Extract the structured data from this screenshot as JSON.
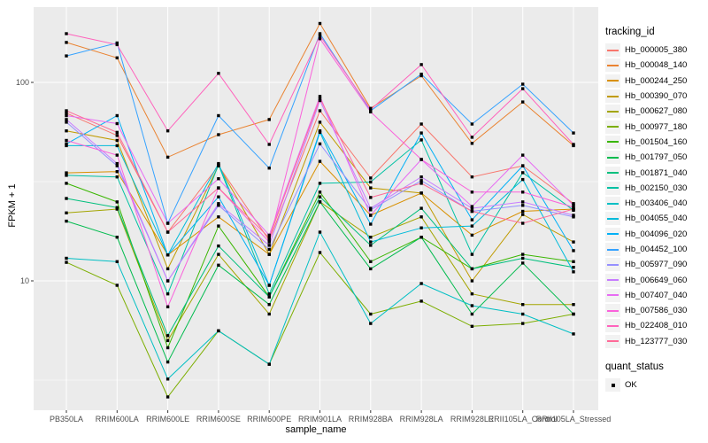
{
  "figure": {
    "background": "#FFFFFF",
    "panel_background": "#EBEBEB",
    "grid_color": "#FFFFFF",
    "axis_text_color": "#4D4D4D",
    "tick_mark_color": "#333333",
    "point_color": "#000000"
  },
  "chart_data": {
    "type": "line",
    "title": "",
    "xlabel": "sample_name",
    "ylabel": "FPKM + 1",
    "y_scale": "log10",
    "y_ticks": [
      10,
      100
    ],
    "y_tick_labels": [
      "10",
      "100"
    ],
    "y_minor_ticks": [
      3.162,
      31.62
    ],
    "ylim": [
      2.2,
      240
    ],
    "grid": "on",
    "legend_position": "right",
    "point_shape": "square",
    "categories": [
      "PB350LA",
      "RRIM600LA",
      "RRIM600LE",
      "RRIM600SE",
      "RRIM600PE",
      "RRIM901LA",
      "RRIM928BA",
      "RRIM928LA",
      "RRIM928LE",
      "RRII105LA_Control",
      "RRII105LA_Stressed"
    ],
    "series": [
      {
        "name": "Hb_000005_380",
        "color": "#F8766D",
        "values": [
          70,
          54,
          17.6,
          38,
          16,
          72,
          33,
          61.7,
          33.4,
          38,
          24.5
        ]
      },
      {
        "name": "Hb_000048_140",
        "color": "#EA8331",
        "values": [
          159,
          133,
          42,
          54.5,
          65,
          198,
          74,
          108,
          49.3,
          79.7,
          48
        ]
      },
      {
        "name": "Hb_000244_250",
        "color": "#D89000",
        "values": [
          35,
          35.5,
          13.5,
          21,
          13.6,
          40,
          21.4,
          27.7,
          17,
          22.4,
          23
        ]
      },
      {
        "name": "Hb_000390_070",
        "color": "#C09B00",
        "values": [
          57,
          51,
          11.5,
          38,
          13.6,
          63,
          29.4,
          27.7,
          10,
          21.6,
          15.7
        ]
      },
      {
        "name": "Hb_000627_080",
        "color": "#A3A500",
        "values": [
          22,
          23,
          5.0,
          13.6,
          6.8,
          25,
          16.6,
          21,
          8.6,
          7.6,
          7.6
        ]
      },
      {
        "name": "Hb_000977_180",
        "color": "#7CAE00",
        "values": [
          12.4,
          9.5,
          2.6,
          5.6,
          3.8,
          13.9,
          6.8,
          7.9,
          5.9,
          6.1,
          6.8
        ]
      },
      {
        "name": "Hb_001504_160",
        "color": "#39B600",
        "values": [
          31,
          25,
          4.6,
          18.9,
          8.3,
          28,
          12.5,
          16.6,
          11.5,
          13.6,
          12.5
        ]
      },
      {
        "name": "Hb_001797_050",
        "color": "#00BB4E",
        "values": [
          20,
          16.6,
          3.9,
          12,
          7.6,
          25,
          11.5,
          16.6,
          6.8,
          12.3,
          6.8
        ]
      },
      {
        "name": "Hb_001871_040",
        "color": "#00BF7D",
        "values": [
          26,
          23.4,
          5.3,
          15,
          8.3,
          26.5,
          15.1,
          23.2,
          11.5,
          13,
          11.7
        ]
      },
      {
        "name": "Hb_002150_030",
        "color": "#00C1A3",
        "values": [
          34,
          33.4,
          8.6,
          38.5,
          8.6,
          31,
          31.5,
          51.3,
          13.6,
          35.1,
          22.7
        ]
      },
      {
        "name": "Hb_003406_040",
        "color": "#00BFC4",
        "values": [
          13,
          12.5,
          3.2,
          5.6,
          3.8,
          17.6,
          6.1,
          9.7,
          7.5,
          6.8,
          5.4
        ]
      },
      {
        "name": "Hb_004055_040",
        "color": "#00BBDA",
        "values": [
          48,
          48,
          13.5,
          39,
          9.5,
          56,
          15.7,
          18.5,
          18.9,
          32.4,
          11.1
        ]
      },
      {
        "name": "Hb_004096_020",
        "color": "#00B0F6",
        "values": [
          49,
          68,
          13.5,
          26.5,
          9.5,
          57,
          19.3,
          55.6,
          20.3,
          38,
          14.2
        ]
      },
      {
        "name": "Hb_004452_100",
        "color": "#35A2FF",
        "values": [
          136,
          158,
          19.5,
          68,
          37,
          176,
          72,
          110,
          61.7,
          98,
          55.6
        ]
      },
      {
        "name": "Hb_005977_090",
        "color": "#9590FF",
        "values": [
          63,
          38,
          10,
          24,
          14.4,
          49,
          22.8,
          32,
          22.4,
          24,
          21
        ]
      },
      {
        "name": "Hb_006649_060",
        "color": "#C77CFF",
        "values": [
          65,
          39,
          10,
          24.5,
          15.1,
          81,
          23.2,
          33.4,
          23.2,
          25,
          21.4
        ]
      },
      {
        "name": "Hb_007407_040",
        "color": "#E76BF3",
        "values": [
          68,
          62,
          19.5,
          32.7,
          17,
          85,
          21.4,
          40.9,
          23.7,
          43,
          24
        ]
      },
      {
        "name": "Hb_007586_030",
        "color": "#FA62DB",
        "values": [
          51,
          43,
          7.4,
          29.4,
          15.7,
          166,
          71,
          40.9,
          28,
          28,
          23.5
        ]
      },
      {
        "name": "Hb_022408_010",
        "color": "#FF62BC",
        "values": [
          176,
          155,
          57,
          111,
          48.7,
          172,
          73,
          123,
          52.9,
          93,
          48.7
        ]
      },
      {
        "name": "Hb_123777_030",
        "color": "#FF6A98",
        "values": [
          72,
          56,
          17.6,
          29.4,
          16.5,
          83,
          26.3,
          31,
          22.4,
          19.5,
          23
        ]
      }
    ],
    "legend": {
      "tracking_title": "tracking_id",
      "quant_title": "quant_status",
      "quant_items": [
        {
          "label": "OK"
        }
      ]
    }
  }
}
